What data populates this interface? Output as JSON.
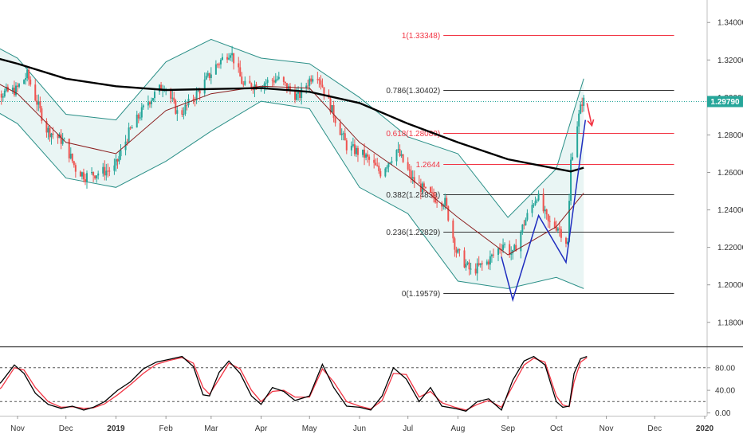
{
  "chart_data": [
    {
      "type": "candlestick",
      "instrument_view": "daily price with Bollinger Bands, moving averages and Fibonacci retracement",
      "ylim": [
        1.168,
        1.352
      ],
      "y_ticks": [
        "1.34000",
        "1.32000",
        "1.30000",
        "1.28000",
        "1.26000",
        "1.24000",
        "1.22000",
        "1.20000",
        "1.18000"
      ],
      "y_tick_values": [
        1.34,
        1.32,
        1.3,
        1.28,
        1.26,
        1.24,
        1.22,
        1.2,
        1.18
      ],
      "last_price_label": "1.29790",
      "last_price": 1.2979,
      "x_ticks": [
        "Nov",
        "Dec",
        "2019",
        "Feb",
        "Mar",
        "Apr",
        "May",
        "Jun",
        "Jul",
        "Aug",
        "Sep",
        "Oct",
        "Nov",
        "Dec",
        "2020"
      ],
      "x_tick_dates": [
        "2018-11-01",
        "2018-12-01",
        "2019-01-01",
        "2019-02-01",
        "2019-03-01",
        "2019-04-01",
        "2019-05-01",
        "2019-06-01",
        "2019-07-01",
        "2019-08-01",
        "2019-09-01",
        "2019-10-01",
        "2019-11-01",
        "2019-12-01",
        "2020-01-01"
      ],
      "price_path": [
        [
          "2018-10-10",
          1.318
        ],
        [
          "2018-10-22",
          1.302
        ],
        [
          "2018-11-01",
          1.304
        ],
        [
          "2018-11-08",
          1.312
        ],
        [
          "2018-11-20",
          1.283
        ],
        [
          "2018-12-01",
          1.276
        ],
        [
          "2018-12-08",
          1.262
        ],
        [
          "2018-12-14",
          1.258
        ],
        [
          "2019-01-01",
          1.262
        ],
        [
          "2019-01-10",
          1.281
        ],
        [
          "2019-01-22",
          1.298
        ],
        [
          "2019-02-01",
          1.307
        ],
        [
          "2019-02-10",
          1.29
        ],
        [
          "2019-02-22",
          1.303
        ],
        [
          "2019-03-05",
          1.317
        ],
        [
          "2019-03-14",
          1.325
        ],
        [
          "2019-03-22",
          1.306
        ],
        [
          "2019-04-01",
          1.307
        ],
        [
          "2019-04-12",
          1.31
        ],
        [
          "2019-04-25",
          1.3
        ],
        [
          "2019-05-06",
          1.315
        ],
        [
          "2019-05-15",
          1.295
        ],
        [
          "2019-05-25",
          1.274
        ],
        [
          "2019-06-05",
          1.269
        ],
        [
          "2019-06-15",
          1.26
        ],
        [
          "2019-06-25",
          1.272
        ],
        [
          "2019-07-05",
          1.256
        ],
        [
          "2019-07-15",
          1.248
        ],
        [
          "2019-07-25",
          1.244
        ],
        [
          "2019-08-01",
          1.218
        ],
        [
          "2019-08-10",
          1.207
        ],
        [
          "2019-08-20",
          1.212
        ],
        [
          "2019-08-30",
          1.222
        ],
        [
          "2019-09-05",
          1.216
        ],
        [
          "2019-09-12",
          1.233
        ],
        [
          "2019-09-20",
          1.248
        ],
        [
          "2019-09-27",
          1.233
        ],
        [
          "2019-10-03",
          1.231
        ],
        [
          "2019-10-09",
          1.222
        ],
        [
          "2019-10-11",
          1.266
        ],
        [
          "2019-10-15",
          1.286
        ],
        [
          "2019-10-18",
          1.2979
        ]
      ],
      "series": [
        {
          "name": "",
          "role": "long moving average",
          "color": "#000000",
          "points": [
            [
              "2018-10-10",
              1.323
            ],
            [
              "2018-11-01",
              1.318
            ],
            [
              "2018-12-01",
              1.31
            ],
            [
              "2019-01-01",
              1.306
            ],
            [
              "2019-02-01",
              1.304
            ],
            [
              "2019-03-01",
              1.3045
            ],
            [
              "2019-04-01",
              1.305
            ],
            [
              "2019-05-01",
              1.303
            ],
            [
              "2019-06-01",
              1.297
            ],
            [
              "2019-07-01",
              1.286
            ],
            [
              "2019-08-01",
              1.276
            ],
            [
              "2019-09-01",
              1.267
            ],
            [
              "2019-10-01",
              1.262
            ],
            [
              "2019-10-10",
              1.2605
            ],
            [
              "2019-10-18",
              1.2625
            ]
          ]
        },
        {
          "name": "",
          "role": "basis moving average",
          "color": "#8B1E1E",
          "points": [
            [
              "2018-10-10",
              1.312
            ],
            [
              "2018-11-01",
              1.302
            ],
            [
              "2018-12-01",
              1.276
            ],
            [
              "2019-01-01",
              1.27
            ],
            [
              "2019-02-01",
              1.293
            ],
            [
              "2019-03-01",
              1.302
            ],
            [
              "2019-04-01",
              1.306
            ],
            [
              "2019-05-01",
              1.305
            ],
            [
              "2019-06-01",
              1.276
            ],
            [
              "2019-07-01",
              1.258
            ],
            [
              "2019-08-01",
              1.236
            ],
            [
              "2019-09-01",
              1.216
            ],
            [
              "2019-10-01",
              1.231
            ],
            [
              "2019-10-18",
              1.249
            ]
          ]
        }
      ],
      "bollinger_upper": [
        [
          "2018-10-10",
          1.331
        ],
        [
          "2018-11-01",
          1.321
        ],
        [
          "2018-12-01",
          1.291
        ],
        [
          "2019-01-01",
          1.288
        ],
        [
          "2019-02-01",
          1.319
        ],
        [
          "2019-03-01",
          1.331
        ],
        [
          "2019-04-01",
          1.321
        ],
        [
          "2019-05-01",
          1.318
        ],
        [
          "2019-06-01",
          1.3
        ],
        [
          "2019-07-01",
          1.279
        ],
        [
          "2019-08-01",
          1.27
        ],
        [
          "2019-09-01",
          1.236
        ],
        [
          "2019-10-01",
          1.262
        ],
        [
          "2019-10-18",
          1.31
        ]
      ],
      "bollinger_lower": [
        [
          "2018-10-10",
          1.297
        ],
        [
          "2018-11-01",
          1.286
        ],
        [
          "2018-12-01",
          1.257
        ],
        [
          "2019-01-01",
          1.252
        ],
        [
          "2019-02-01",
          1.266
        ],
        [
          "2019-03-01",
          1.282
        ],
        [
          "2019-04-01",
          1.298
        ],
        [
          "2019-05-01",
          1.294
        ],
        [
          "2019-06-01",
          1.252
        ],
        [
          "2019-07-01",
          1.238
        ],
        [
          "2019-08-01",
          1.202
        ],
        [
          "2019-09-01",
          1.198
        ],
        [
          "2019-10-01",
          1.204
        ],
        [
          "2019-10-18",
          1.198
        ]
      ],
      "fibonacci_levels": [
        {
          "label": "1(1.33348)",
          "value": 1.33348,
          "color": "#F23645"
        },
        {
          "label": "0.786(1.30402)",
          "value": 1.30402,
          "color": "#333333"
        },
        {
          "label": "0.618(1.28089)",
          "value": 1.28089,
          "color": "#F23645"
        },
        {
          "label": "1.2644",
          "value": 1.2644,
          "color": "#F23645"
        },
        {
          "label": "0.382(1.24839)",
          "value": 1.24839,
          "color": "#333333"
        },
        {
          "label": "0.236(1.22829)",
          "value": 1.22829,
          "color": "#333333"
        },
        {
          "label": "0(1.19579)",
          "value": 1.19579,
          "color": "#333333"
        }
      ],
      "pattern_lines": {
        "color": "#1F2DBF",
        "points": [
          [
            "2019-08-28",
            1.215
          ],
          [
            "2019-09-04",
            1.192
          ],
          [
            "2019-09-20",
            1.237
          ],
          [
            "2019-10-07",
            1.212
          ],
          [
            "2019-10-19",
            1.288
          ]
        ]
      },
      "arrow": {
        "color": "#F23645",
        "from": [
          "2019-10-20",
          1.297
        ],
        "to": [
          "2019-10-23",
          1.285
        ]
      }
    },
    {
      "type": "line",
      "indicator": "stochastic oscillator",
      "ylim": [
        -5,
        115
      ],
      "y_ticks": [
        "80.00",
        "40.00",
        "0.00"
      ],
      "y_tick_values": [
        80,
        40,
        0
      ],
      "levels": [
        80,
        20
      ],
      "series": [
        {
          "name": "",
          "color": "#000000",
          "points": [
            [
              "2018-10-10",
              25
            ],
            [
              "2018-10-22",
              55
            ],
            [
              "2018-10-30",
              85
            ],
            [
              "2018-11-05",
              70
            ],
            [
              "2018-11-12",
              35
            ],
            [
              "2018-11-20",
              15
            ],
            [
              "2018-11-28",
              8
            ],
            [
              "2018-12-05",
              12
            ],
            [
              "2018-12-12",
              5
            ],
            [
              "2018-12-18",
              10
            ],
            [
              "2018-12-25",
              20
            ],
            [
              "2019-01-02",
              40
            ],
            [
              "2019-01-10",
              55
            ],
            [
              "2019-01-18",
              78
            ],
            [
              "2019-01-26",
              90
            ],
            [
              "2019-02-03",
              95
            ],
            [
              "2019-02-11",
              100
            ],
            [
              "2019-02-18",
              82
            ],
            [
              "2019-02-24",
              32
            ],
            [
              "2019-02-28",
              30
            ],
            [
              "2019-03-06",
              72
            ],
            [
              "2019-03-12",
              92
            ],
            [
              "2019-03-19",
              70
            ],
            [
              "2019-03-26",
              30
            ],
            [
              "2019-04-01",
              15
            ],
            [
              "2019-04-08",
              45
            ],
            [
              "2019-04-15",
              38
            ],
            [
              "2019-04-22",
              22
            ],
            [
              "2019-05-01",
              30
            ],
            [
              "2019-05-09",
              86
            ],
            [
              "2019-05-16",
              45
            ],
            [
              "2019-05-24",
              12
            ],
            [
              "2019-06-01",
              10
            ],
            [
              "2019-06-08",
              5
            ],
            [
              "2019-06-15",
              30
            ],
            [
              "2019-06-22",
              80
            ],
            [
              "2019-06-30",
              60
            ],
            [
              "2019-07-08",
              20
            ],
            [
              "2019-07-15",
              45
            ],
            [
              "2019-07-22",
              12
            ],
            [
              "2019-07-30",
              8
            ],
            [
              "2019-08-06",
              3
            ],
            [
              "2019-08-13",
              20
            ],
            [
              "2019-08-20",
              25
            ],
            [
              "2019-08-28",
              5
            ],
            [
              "2019-09-04",
              58
            ],
            [
              "2019-09-11",
              92
            ],
            [
              "2019-09-17",
              100
            ],
            [
              "2019-09-24",
              85
            ],
            [
              "2019-10-01",
              20
            ],
            [
              "2019-10-05",
              10
            ],
            [
              "2019-10-09",
              12
            ],
            [
              "2019-10-12",
              70
            ],
            [
              "2019-10-16",
              96
            ],
            [
              "2019-10-20",
              100
            ]
          ]
        },
        {
          "name": "",
          "color": "#F23645",
          "points": [
            [
              "2018-10-10",
              20
            ],
            [
              "2018-10-22",
              45
            ],
            [
              "2018-10-30",
              80
            ],
            [
              "2018-11-05",
              76
            ],
            [
              "2018-11-12",
              45
            ],
            [
              "2018-11-20",
              20
            ],
            [
              "2018-11-28",
              10
            ],
            [
              "2018-12-05",
              11
            ],
            [
              "2018-12-12",
              8
            ],
            [
              "2018-12-18",
              9
            ],
            [
              "2018-12-25",
              16
            ],
            [
              "2019-01-02",
              32
            ],
            [
              "2019-01-10",
              50
            ],
            [
              "2019-01-18",
              70
            ],
            [
              "2019-01-26",
              86
            ],
            [
              "2019-02-03",
              93
            ],
            [
              "2019-02-11",
              98
            ],
            [
              "2019-02-18",
              88
            ],
            [
              "2019-02-24",
              45
            ],
            [
              "2019-02-28",
              33
            ],
            [
              "2019-03-06",
              60
            ],
            [
              "2019-03-12",
              88
            ],
            [
              "2019-03-19",
              78
            ],
            [
              "2019-03-26",
              40
            ],
            [
              "2019-04-01",
              20
            ],
            [
              "2019-04-08",
              38
            ],
            [
              "2019-04-15",
              40
            ],
            [
              "2019-04-22",
              28
            ],
            [
              "2019-05-01",
              28
            ],
            [
              "2019-05-09",
              78
            ],
            [
              "2019-05-16",
              55
            ],
            [
              "2019-05-24",
              20
            ],
            [
              "2019-06-01",
              12
            ],
            [
              "2019-06-08",
              7
            ],
            [
              "2019-06-15",
              22
            ],
            [
              "2019-06-22",
              70
            ],
            [
              "2019-06-30",
              68
            ],
            [
              "2019-07-08",
              28
            ],
            [
              "2019-07-15",
              38
            ],
            [
              "2019-07-22",
              18
            ],
            [
              "2019-07-30",
              10
            ],
            [
              "2019-08-06",
              5
            ],
            [
              "2019-08-13",
              15
            ],
            [
              "2019-08-20",
              22
            ],
            [
              "2019-08-28",
              10
            ],
            [
              "2019-09-04",
              48
            ],
            [
              "2019-09-11",
              85
            ],
            [
              "2019-09-17",
              97
            ],
            [
              "2019-09-24",
              90
            ],
            [
              "2019-10-01",
              30
            ],
            [
              "2019-10-05",
              14
            ],
            [
              "2019-10-09",
              11
            ],
            [
              "2019-10-12",
              55
            ],
            [
              "2019-10-16",
              90
            ],
            [
              "2019-10-20",
              98
            ]
          ]
        }
      ]
    }
  ],
  "colors": {
    "up_candle": "#26A69A",
    "down_candle": "#EF5350",
    "band_line": "#2A8F87",
    "band_fill": "#E3F3F1",
    "last_price_badge": "#26A69A",
    "axis_text": "#333333"
  }
}
